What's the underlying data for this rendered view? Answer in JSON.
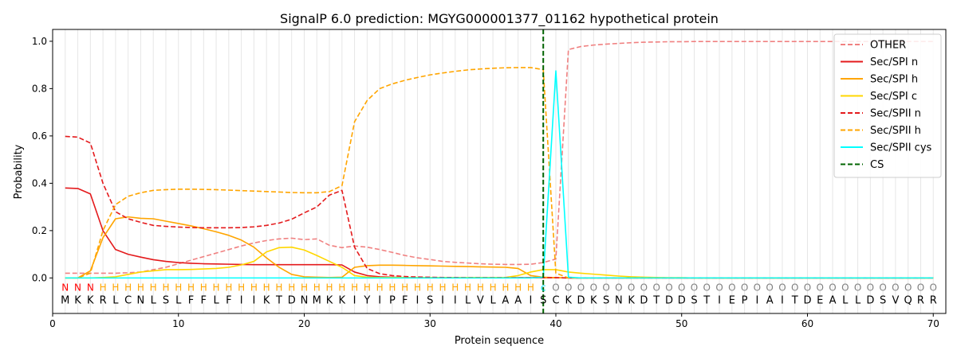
{
  "chart_data": {
    "type": "line",
    "title": "SignalP 6.0 prediction: MGYG000001377_01162 hypothetical protein",
    "xlabel": "Protein sequence",
    "ylabel": "Probability",
    "xlim": [
      0,
      71
    ],
    "ylim": [
      -0.15,
      1.05
    ],
    "xticks": [
      0,
      10,
      20,
      30,
      40,
      50,
      60,
      70
    ],
    "yticks": [
      0.0,
      0.2,
      0.4,
      0.6,
      0.8,
      1.0
    ],
    "xtick_labels": [
      "0",
      "10",
      "20",
      "30",
      "40",
      "50",
      "60",
      "70"
    ],
    "ytick_labels": [
      "0.0",
      "0.2",
      "0.4",
      "0.6",
      "0.8",
      "1.0"
    ],
    "grid": "vertical lines at each residue",
    "legend_position": "top-right",
    "sequence": "MKKRLCNLSLFFLFIIKTDNMKKIYIPFISIILVLAAISCKDKSNKDTDDSTIEPIAITDEALLDSVQRR",
    "region_labels": "NNNHHHHHHHHHHHHHHHHHHHHHHHHHHHHHHHHHHHCOOOOOOOOOOOOOOOOOOOOOOOOOOOOOOO",
    "region_colors": {
      "N": "#ff0000",
      "H": "#ffa500",
      "C": "#00e5ee",
      "O": "#808080"
    },
    "cleavage_site": 39,
    "series": [
      {
        "name": "OTHER",
        "color": "#f08080",
        "dash": "dashed",
        "values": [
          0.02,
          0.02,
          0.02,
          0.02,
          0.02,
          0.022,
          0.025,
          0.035,
          0.045,
          0.06,
          0.075,
          0.09,
          0.105,
          0.12,
          0.135,
          0.148,
          0.158,
          0.165,
          0.168,
          0.162,
          0.165,
          0.138,
          0.128,
          0.135,
          0.13,
          0.12,
          0.108,
          0.095,
          0.085,
          0.078,
          0.07,
          0.066,
          0.063,
          0.06,
          0.058,
          0.057,
          0.057,
          0.058,
          0.065,
          0.08,
          0.965,
          0.978,
          0.984,
          0.988,
          0.991,
          0.994,
          0.996,
          0.997,
          0.998,
          0.998,
          0.999,
          0.999,
          0.999,
          0.999,
          0.999,
          0.999,
          0.999,
          0.999,
          0.999,
          0.999,
          0.999,
          0.999,
          0.999,
          0.999,
          0.999,
          0.999,
          0.999,
          0.999,
          0.999,
          0.999
        ]
      },
      {
        "name": "Sec/SPI n",
        "color": "#e41a1c",
        "dash": "solid",
        "values": [
          0.38,
          0.378,
          0.355,
          0.2,
          0.12,
          0.1,
          0.088,
          0.077,
          0.07,
          0.065,
          0.062,
          0.06,
          0.059,
          0.058,
          0.057,
          0.056,
          0.056,
          0.056,
          0.056,
          0.056,
          0.056,
          0.056,
          0.055,
          0.025,
          0.01,
          0.005,
          0.003,
          0.002,
          0.001,
          0.001,
          0.001,
          0.001,
          0.001,
          0.001,
          0.001,
          0.001,
          0.001,
          0.001,
          0.001,
          0.001,
          0.0,
          0.0,
          0.0,
          0.0,
          0.0,
          0.0,
          0.0,
          0.0,
          0.0,
          0.0,
          0.0,
          0.0,
          0.0,
          0.0,
          0.0,
          0.0,
          0.0,
          0.0,
          0.0,
          0.0,
          0.0,
          0.0,
          0.0,
          0.0,
          0.0,
          0.0,
          0.0,
          0.0,
          0.0,
          0.0
        ]
      },
      {
        "name": "Sec/SPI h",
        "color": "#ffa500",
        "dash": "solid",
        "values": [
          0.0,
          0.0,
          0.03,
          0.17,
          0.25,
          0.258,
          0.252,
          0.25,
          0.24,
          0.23,
          0.22,
          0.208,
          0.195,
          0.18,
          0.16,
          0.13,
          0.085,
          0.045,
          0.015,
          0.005,
          0.003,
          0.002,
          0.003,
          0.045,
          0.052,
          0.054,
          0.054,
          0.053,
          0.052,
          0.051,
          0.05,
          0.049,
          0.048,
          0.047,
          0.046,
          0.045,
          0.04,
          0.01,
          0.003,
          0.001,
          0.0,
          0.0,
          0.0,
          0.0,
          0.0,
          0.0,
          0.0,
          0.0,
          0.0,
          0.0,
          0.0,
          0.0,
          0.0,
          0.0,
          0.0,
          0.0,
          0.0,
          0.0,
          0.0,
          0.0,
          0.0,
          0.0,
          0.0,
          0.0,
          0.0,
          0.0,
          0.0,
          0.0,
          0.0,
          0.0
        ]
      },
      {
        "name": "Sec/SPI c",
        "color": "#ffd700",
        "dash": "solid",
        "values": [
          0.0,
          0.0,
          0.0,
          0.002,
          0.005,
          0.015,
          0.025,
          0.03,
          0.035,
          0.035,
          0.036,
          0.038,
          0.04,
          0.045,
          0.055,
          0.07,
          0.11,
          0.128,
          0.13,
          0.118,
          0.095,
          0.07,
          0.045,
          0.01,
          0.003,
          0.002,
          0.002,
          0.002,
          0.002,
          0.002,
          0.002,
          0.002,
          0.002,
          0.002,
          0.002,
          0.002,
          0.01,
          0.025,
          0.035,
          0.035,
          0.025,
          0.02,
          0.016,
          0.012,
          0.008,
          0.005,
          0.003,
          0.002,
          0.001,
          0.001,
          0.0,
          0.0,
          0.0,
          0.0,
          0.0,
          0.0,
          0.0,
          0.0,
          0.0,
          0.0,
          0.0,
          0.0,
          0.0,
          0.0,
          0.0,
          0.0,
          0.0,
          0.0,
          0.0,
          0.0
        ]
      },
      {
        "name": "Sec/SPII n",
        "color": "#e41a1c",
        "dash": "dashed",
        "values": [
          0.598,
          0.595,
          0.57,
          0.4,
          0.28,
          0.25,
          0.235,
          0.222,
          0.218,
          0.215,
          0.213,
          0.212,
          0.212,
          0.212,
          0.213,
          0.216,
          0.222,
          0.232,
          0.248,
          0.275,
          0.3,
          0.35,
          0.37,
          0.13,
          0.04,
          0.018,
          0.01,
          0.006,
          0.004,
          0.003,
          0.002,
          0.002,
          0.001,
          0.001,
          0.001,
          0.001,
          0.001,
          0.001,
          0.001,
          0.001,
          0.0,
          0.0,
          0.0,
          0.0,
          0.0,
          0.0,
          0.0,
          0.0,
          0.0,
          0.0,
          0.0,
          0.0,
          0.0,
          0.0,
          0.0,
          0.0,
          0.0,
          0.0,
          0.0,
          0.0,
          0.0,
          0.0,
          0.0,
          0.0,
          0.0,
          0.0,
          0.0,
          0.0,
          0.0,
          0.0
        ]
      },
      {
        "name": "Sec/SPII h",
        "color": "#ffa500",
        "dash": "dashed",
        "values": [
          0.0,
          0.0,
          0.02,
          0.2,
          0.31,
          0.345,
          0.36,
          0.37,
          0.373,
          0.375,
          0.375,
          0.374,
          0.373,
          0.371,
          0.369,
          0.367,
          0.365,
          0.363,
          0.361,
          0.36,
          0.36,
          0.365,
          0.39,
          0.66,
          0.75,
          0.8,
          0.82,
          0.835,
          0.847,
          0.858,
          0.866,
          0.873,
          0.879,
          0.883,
          0.886,
          0.888,
          0.889,
          0.889,
          0.88,
          0.02,
          0.0,
          0.0,
          0.0,
          0.0,
          0.0,
          0.0,
          0.0,
          0.0,
          0.0,
          0.0,
          0.0,
          0.0,
          0.0,
          0.0,
          0.0,
          0.0,
          0.0,
          0.0,
          0.0,
          0.0,
          0.0,
          0.0,
          0.0,
          0.0,
          0.0,
          0.0,
          0.0,
          0.0,
          0.0,
          0.0
        ]
      },
      {
        "name": "Sec/SPII cys",
        "color": "#00ffff",
        "dash": "solid",
        "values": [
          0.0,
          0.0,
          0.0,
          0.0,
          0.0,
          0.0,
          0.0,
          0.0,
          0.0,
          0.0,
          0.0,
          0.0,
          0.0,
          0.0,
          0.0,
          0.0,
          0.0,
          0.0,
          0.0,
          0.0,
          0.0,
          0.0,
          0.0,
          0.0,
          0.0,
          0.0,
          0.0,
          0.0,
          0.0,
          0.0,
          0.0,
          0.0,
          0.0,
          0.0,
          0.0,
          0.0,
          0.0,
          0.0,
          0.003,
          0.875,
          0.003,
          0.0,
          0.0,
          0.0,
          0.0,
          0.0,
          0.0,
          0.0,
          0.0,
          0.0,
          0.0,
          0.0,
          0.0,
          0.0,
          0.0,
          0.0,
          0.0,
          0.0,
          0.0,
          0.0,
          0.0,
          0.0,
          0.0,
          0.0,
          0.0,
          0.0,
          0.0,
          0.0,
          0.0,
          0.0
        ]
      },
      {
        "name": "CS",
        "color": "#006400",
        "dash": "dashed",
        "values": []
      }
    ]
  }
}
